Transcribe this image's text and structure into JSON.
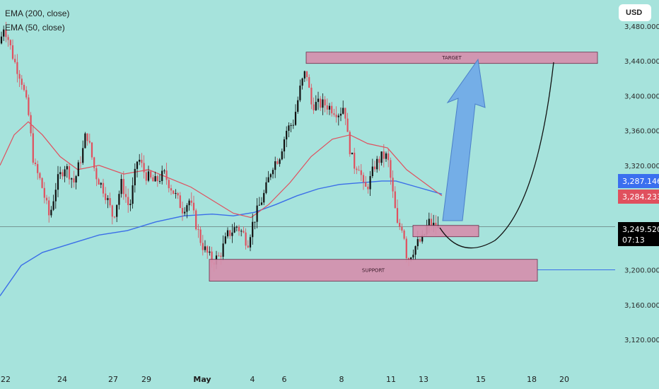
{
  "legend": {
    "ema200": "EMA (200, close)",
    "ema50": "EMA (50, close)"
  },
  "currency_button": "USD",
  "colors": {
    "background": "#a6e3dc",
    "bull": "#111111",
    "bear": "#e0505e",
    "ema50": "#e0505e",
    "ema200": "#3b6ee8",
    "zone_fill": "#d58fad",
    "zone_stroke": "#6b2a48",
    "arrow": "#6fa7e8",
    "price_blue": "#3a6fef",
    "price_red": "#e0505e",
    "price_black": "#000000"
  },
  "chart_data": {
    "type": "candlestick",
    "title": "",
    "xlabel": "",
    "ylabel": "",
    "ylim": [
      3090,
      3500
    ],
    "y_ticks": [
      "3,440.000",
      "3,400.000",
      "3,360.000",
      "3,320.000",
      "3,200.000",
      "3,160.000",
      "3,120.000"
    ],
    "y_tick_values": [
      3440,
      3400,
      3360,
      3320,
      3200,
      3160,
      3120
    ],
    "x_ticks": [
      "22",
      "24",
      "27",
      "29",
      "May",
      "4",
      "6",
      "8",
      "11",
      "13",
      "15",
      "18",
      "20"
    ],
    "price_labels": [
      {
        "text": "3,287.146",
        "value": 3287.146,
        "color": "blue"
      },
      {
        "text": "3,284.233",
        "value": 3284.233,
        "color": "red"
      },
      {
        "text": "3,249.520",
        "value": 3249.52,
        "color": "black",
        "sub": "07:13"
      }
    ],
    "current_price": 3249.52,
    "ohlc_close_path": [
      [
        0,
        3460
      ],
      [
        5,
        3480
      ],
      [
        10,
        3470
      ],
      [
        20,
        3440
      ],
      [
        30,
        3420
      ],
      [
        40,
        3380
      ],
      [
        48,
        3320
      ],
      [
        58,
        3300
      ],
      [
        70,
        3260
      ],
      [
        80,
        3300
      ],
      [
        92,
        3320
      ],
      [
        105,
        3300
      ],
      [
        118,
        3340
      ],
      [
        122,
        3360
      ],
      [
        135,
        3310
      ],
      [
        148,
        3290
      ],
      [
        160,
        3260
      ],
      [
        172,
        3300
      ],
      [
        183,
        3270
      ],
      [
        195,
        3330
      ],
      [
        205,
        3310
      ],
      [
        218,
        3300
      ],
      [
        232,
        3310
      ],
      [
        245,
        3290
      ],
      [
        258,
        3270
      ],
      [
        268,
        3280
      ],
      [
        278,
        3250
      ],
      [
        285,
        3230
      ],
      [
        292,
        3220
      ],
      [
        300,
        3210
      ],
      [
        310,
        3215
      ],
      [
        322,
        3240
      ],
      [
        335,
        3250
      ],
      [
        345,
        3240
      ],
      [
        350,
        3230
      ],
      [
        356,
        3250
      ],
      [
        365,
        3270
      ],
      [
        375,
        3290
      ],
      [
        385,
        3320
      ],
      [
        395,
        3330
      ],
      [
        405,
        3360
      ],
      [
        415,
        3370
      ],
      [
        425,
        3410
      ],
      [
        433,
        3430
      ],
      [
        440,
        3390
      ],
      [
        450,
        3390
      ],
      [
        460,
        3390
      ],
      [
        470,
        3385
      ],
      [
        480,
        3380
      ],
      [
        487,
        3390
      ],
      [
        492,
        3350
      ],
      [
        500,
        3320
      ],
      [
        508,
        3320
      ],
      [
        515,
        3290
      ],
      [
        522,
        3300
      ],
      [
        530,
        3320
      ],
      [
        540,
        3330
      ],
      [
        548,
        3330
      ],
      [
        555,
        3290
      ],
      [
        562,
        3250
      ],
      [
        570,
        3250
      ],
      [
        576,
        3210
      ],
      [
        582,
        3220
      ],
      [
        590,
        3230
      ],
      [
        598,
        3235
      ],
      [
        606,
        3255
      ],
      [
        614,
        3250
      ],
      [
        622,
        3248
      ]
    ],
    "ema50": [
      [
        0,
        3320
      ],
      [
        20,
        3355
      ],
      [
        40,
        3370
      ],
      [
        60,
        3355
      ],
      [
        85,
        3330
      ],
      [
        110,
        3315
      ],
      [
        140,
        3320
      ],
      [
        175,
        3310
      ],
      [
        210,
        3315
      ],
      [
        240,
        3305
      ],
      [
        270,
        3295
      ],
      [
        300,
        3280
      ],
      [
        330,
        3265
      ],
      [
        355,
        3260
      ],
      [
        380,
        3275
      ],
      [
        410,
        3300
      ],
      [
        440,
        3330
      ],
      [
        470,
        3350
      ],
      [
        495,
        3355
      ],
      [
        520,
        3345
      ],
      [
        548,
        3340
      ],
      [
        575,
        3315
      ],
      [
        600,
        3300
      ],
      [
        625,
        3285
      ]
    ],
    "ema200": [
      [
        0,
        3170
      ],
      [
        30,
        3205
      ],
      [
        60,
        3220
      ],
      [
        100,
        3230
      ],
      [
        140,
        3240
      ],
      [
        180,
        3245
      ],
      [
        220,
        3255
      ],
      [
        260,
        3262
      ],
      [
        300,
        3264
      ],
      [
        330,
        3262
      ],
      [
        360,
        3266
      ],
      [
        390,
        3275
      ],
      [
        420,
        3285
      ],
      [
        450,
        3293
      ],
      [
        480,
        3298
      ],
      [
        510,
        3300
      ],
      [
        540,
        3302
      ],
      [
        560,
        3302
      ],
      [
        590,
        3295
      ],
      [
        625,
        3287
      ]
    ],
    "zones": [
      {
        "label": "TARGET",
        "x1": 433,
        "x2": 845,
        "y_top": 3450,
        "y_bottom": 3437
      },
      {
        "label": "SUPPORT",
        "x1": 296,
        "x2": 760,
        "y_top": 3212,
        "y_bottom": 3187
      },
      {
        "label": "",
        "x1": 584,
        "x2": 677,
        "y_top": 3251,
        "y_bottom": 3238
      }
    ],
    "support_line_value": 3200,
    "legend_placement": "top-left"
  }
}
